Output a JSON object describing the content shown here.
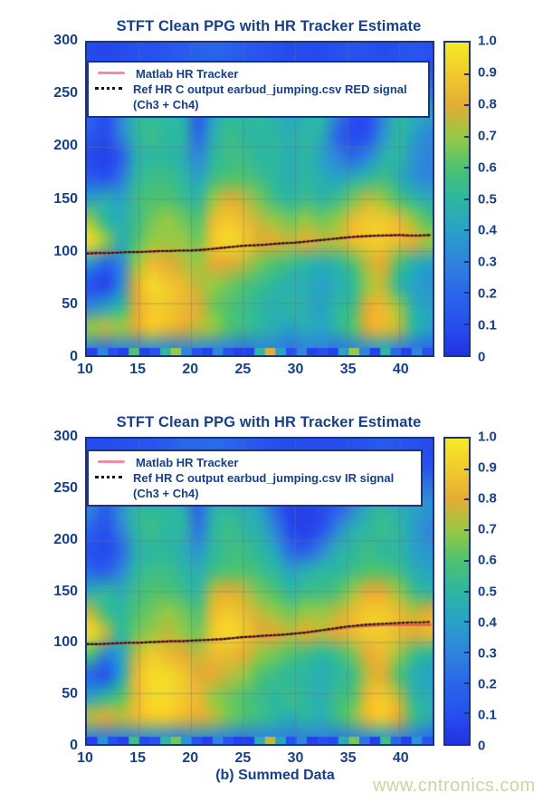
{
  "page": {
    "caption": "(b) Summed Data",
    "watermark": "www.cntronics.com"
  },
  "colors": {
    "axis_text": "#15408f",
    "border": "#1a3480",
    "legend_pink": "#f28ca4",
    "tracker_pink": "#e05a50",
    "tracker_ref": "#1c1410",
    "grid": "rgba(105,118,135,0.45)",
    "watermark": "#c9d69e",
    "page_bg": "#ffffff"
  },
  "colormap": {
    "stops": [
      {
        "t": 0.0,
        "c": "#2331e4"
      },
      {
        "t": 0.1,
        "c": "#2750ee"
      },
      {
        "t": 0.2,
        "c": "#2a66ea"
      },
      {
        "t": 0.3,
        "c": "#2f84dc"
      },
      {
        "t": 0.4,
        "c": "#28a2c6"
      },
      {
        "t": 0.5,
        "c": "#2db7a0"
      },
      {
        "t": 0.6,
        "c": "#4ec26f"
      },
      {
        "t": 0.7,
        "c": "#97c943"
      },
      {
        "t": 0.8,
        "c": "#e3ac34"
      },
      {
        "t": 0.9,
        "c": "#f1ca2d"
      },
      {
        "t": 1.0,
        "c": "#f5ea27"
      }
    ]
  },
  "chart_data": [
    {
      "type": "heatmap",
      "title": "STFT Clean PPG with HR Tracker Estimate",
      "legend": [
        {
          "swatch": "pink-line",
          "label": "Matlab HR Tracker"
        },
        {
          "swatch": "dotted-line",
          "label": "Ref HR C output earbud_jumping.csv RED signal (Ch3 + Ch4)"
        }
      ],
      "xlim": [
        10,
        43.2
      ],
      "ylim": [
        0,
        300
      ],
      "x_ticks": [
        10,
        15,
        20,
        25,
        30,
        35,
        40
      ],
      "y_ticks": [
        0,
        50,
        100,
        150,
        200,
        250,
        300
      ],
      "grid_x": [
        15,
        20,
        25,
        30,
        35,
        40
      ],
      "grid_y": [
        50,
        100,
        150,
        200,
        250
      ],
      "colorbar_ticks": [
        "1.0",
        "0.9",
        "0.8",
        "0.7",
        "0.6",
        "0.5",
        "0.4",
        "0.3",
        "0.2",
        "0.1",
        "0"
      ],
      "heatmap": {
        "row_y_top": 300,
        "row_y_bottom": 0,
        "values": [
          [
            0.08,
            0.06,
            0.08,
            0.1,
            0.1,
            0.12,
            0.15,
            0.18,
            0.2,
            0.18,
            0.15,
            0.12,
            0.1,
            0.08,
            0.08,
            0.08,
            0.1,
            0.12,
            0.1,
            0.08,
            0.1,
            0.12,
            0.1
          ],
          [
            0.1,
            0.1,
            0.12,
            0.12,
            0.12,
            0.15,
            0.15,
            0.15,
            0.15,
            0.15,
            0.12,
            0.12,
            0.12,
            0.1,
            0.1,
            0.1,
            0.1,
            0.1,
            0.12,
            0.12,
            0.12,
            0.15,
            0.12
          ],
          [
            0.15,
            0.18,
            0.2,
            0.2,
            0.22,
            0.25,
            0.25,
            0.25,
            0.22,
            0.22,
            0.2,
            0.2,
            0.18,
            0.18,
            0.18,
            0.18,
            0.2,
            0.2,
            0.22,
            0.25,
            0.3,
            0.3,
            0.25
          ],
          [
            0.2,
            0.1,
            0.3,
            0.5,
            0.5,
            0.5,
            0.45,
            0.15,
            0.4,
            0.5,
            0.5,
            0.5,
            0.45,
            0.4,
            0.45,
            0.5,
            0.3,
            0.1,
            0.1,
            0.3,
            0.5,
            0.45,
            0.4
          ],
          [
            0.15,
            0.08,
            0.3,
            0.5,
            0.55,
            0.5,
            0.5,
            0.2,
            0.45,
            0.55,
            0.5,
            0.5,
            0.5,
            0.45,
            0.5,
            0.45,
            0.2,
            0.08,
            0.1,
            0.35,
            0.5,
            0.4,
            0.3
          ],
          [
            0.08,
            0.05,
            0.15,
            0.45,
            0.5,
            0.5,
            0.45,
            0.3,
            0.5,
            0.55,
            0.55,
            0.5,
            0.5,
            0.45,
            0.5,
            0.4,
            0.3,
            0.2,
            0.3,
            0.45,
            0.5,
            0.35,
            0.3
          ],
          [
            0.15,
            0.1,
            0.25,
            0.5,
            0.55,
            0.55,
            0.5,
            0.4,
            0.55,
            0.6,
            0.6,
            0.55,
            0.5,
            0.45,
            0.5,
            0.45,
            0.4,
            0.45,
            0.5,
            0.55,
            0.45,
            0.35,
            0.3
          ],
          [
            0.4,
            0.45,
            0.4,
            0.55,
            0.6,
            0.6,
            0.55,
            0.5,
            0.7,
            0.8,
            0.75,
            0.65,
            0.55,
            0.5,
            0.55,
            0.5,
            0.55,
            0.65,
            0.75,
            0.7,
            0.6,
            0.5,
            0.45
          ],
          [
            0.7,
            0.5,
            0.45,
            0.55,
            0.65,
            0.7,
            0.65,
            0.6,
            0.85,
            0.9,
            0.85,
            0.75,
            0.7,
            0.65,
            0.7,
            0.65,
            0.7,
            0.85,
            0.9,
            0.9,
            0.85,
            0.7,
            0.6
          ],
          [
            0.95,
            0.7,
            0.45,
            0.6,
            0.7,
            0.7,
            0.7,
            0.65,
            0.9,
            0.95,
            0.9,
            0.8,
            0.8,
            0.75,
            0.8,
            0.75,
            0.75,
            0.85,
            0.9,
            0.9,
            0.85,
            0.8,
            0.7
          ],
          [
            0.35,
            0.2,
            0.3,
            0.7,
            0.85,
            0.8,
            0.75,
            0.7,
            0.8,
            0.8,
            0.75,
            0.65,
            0.6,
            0.55,
            0.5,
            0.45,
            0.5,
            0.6,
            0.75,
            0.8,
            0.6,
            0.45,
            0.4
          ],
          [
            0.1,
            0.05,
            0.3,
            0.8,
            0.95,
            0.9,
            0.85,
            0.75,
            0.7,
            0.65,
            0.6,
            0.55,
            0.5,
            0.45,
            0.45,
            0.4,
            0.45,
            0.5,
            0.7,
            0.75,
            0.5,
            0.4,
            0.35
          ],
          [
            0.3,
            0.4,
            0.5,
            0.8,
            0.9,
            0.9,
            0.85,
            0.8,
            0.65,
            0.6,
            0.55,
            0.5,
            0.45,
            0.5,
            0.45,
            0.4,
            0.5,
            0.55,
            0.8,
            0.85,
            0.7,
            0.45,
            0.4
          ],
          [
            0.7,
            0.75,
            0.7,
            0.8,
            0.9,
            0.85,
            0.8,
            0.75,
            0.7,
            0.6,
            0.55,
            0.5,
            0.45,
            0.4,
            0.45,
            0.4,
            0.5,
            0.6,
            0.8,
            0.85,
            0.75,
            0.5,
            0.4
          ],
          [
            0.3,
            0.25,
            0.3,
            0.3,
            0.35,
            0.3,
            0.3,
            0.35,
            0.3,
            0.3,
            0.25,
            0.3,
            0.3,
            0.25,
            0.3,
            0.3,
            0.25,
            0.3,
            0.35,
            0.4,
            0.3,
            0.25,
            0.2
          ]
        ]
      },
      "bottom_speckles": [
        0.05,
        0.3,
        0.1,
        0.05,
        0.6,
        0.05,
        0.1,
        0.5,
        0.7,
        0.3,
        0.1,
        0.05,
        0.3,
        0.1,
        0.05,
        0.05,
        0.5,
        0.8,
        0.4,
        0.1,
        0.3,
        0.05,
        0.1,
        0.05,
        0.4,
        0.7,
        0.3,
        0.05,
        0.5,
        0.2,
        0.05,
        0.3,
        0.1
      ],
      "tracker": {
        "x_start": 10,
        "x_step": 1,
        "matlab_hr": [
          98,
          98,
          98.5,
          99,
          99,
          99.5,
          99.5,
          100,
          100,
          100.5,
          101,
          101.5,
          102,
          103,
          104,
          105,
          105.5,
          106,
          106.5,
          107.5,
          108,
          109,
          110,
          111,
          112,
          113,
          113.5,
          114,
          114.5,
          115,
          115,
          114.5,
          114.5,
          115
        ],
        "ref_hr": [
          97.5,
          98,
          98,
          98.5,
          99,
          99,
          99.5,
          100,
          100,
          100.5,
          100.5,
          101,
          102,
          103,
          104,
          105,
          105.5,
          106,
          107,
          107.5,
          108,
          109,
          110,
          111,
          112,
          113,
          114,
          114.5,
          115,
          115,
          115.5,
          115,
          115,
          115.5
        ]
      }
    },
    {
      "type": "heatmap",
      "title": "STFT Clean PPG with HR Tracker Estimate",
      "legend": [
        {
          "swatch": "pink-line",
          "label": "Matlab HR Tracker"
        },
        {
          "swatch": "dotted-line",
          "label": "Ref HR C output earbud_jumping.csv IR signal (Ch3 + Ch4)"
        }
      ],
      "xlim": [
        10,
        43.2
      ],
      "ylim": [
        0,
        300
      ],
      "x_ticks": [
        10,
        15,
        20,
        25,
        30,
        35,
        40
      ],
      "y_ticks": [
        0,
        50,
        100,
        150,
        200,
        250,
        300
      ],
      "grid_x": [
        15,
        20,
        25,
        30,
        35,
        40
      ],
      "grid_y": [
        50,
        100,
        150,
        200,
        250
      ],
      "colorbar_ticks": [
        "1.0",
        "0.9",
        "0.8",
        "0.7",
        "0.6",
        "0.5",
        "0.4",
        "0.3",
        "0.2",
        "0.1",
        "0"
      ],
      "heatmap": {
        "row_y_top": 300,
        "row_y_bottom": 0,
        "values": [
          [
            0.08,
            0.08,
            0.1,
            0.1,
            0.12,
            0.15,
            0.2,
            0.2,
            0.22,
            0.2,
            0.15,
            0.12,
            0.1,
            0.08,
            0.08,
            0.08,
            0.08,
            0.1,
            0.12,
            0.15,
            0.12,
            0.1,
            0.08
          ],
          [
            0.1,
            0.1,
            0.12,
            0.12,
            0.15,
            0.15,
            0.18,
            0.18,
            0.18,
            0.15,
            0.15,
            0.12,
            0.1,
            0.1,
            0.08,
            0.08,
            0.08,
            0.1,
            0.12,
            0.15,
            0.15,
            0.12,
            0.1
          ],
          [
            0.2,
            0.25,
            0.25,
            0.25,
            0.3,
            0.3,
            0.3,
            0.28,
            0.25,
            0.25,
            0.22,
            0.2,
            0.15,
            0.1,
            0.08,
            0.08,
            0.1,
            0.2,
            0.3,
            0.35,
            0.35,
            0.3,
            0.25
          ],
          [
            0.3,
            0.15,
            0.35,
            0.5,
            0.5,
            0.5,
            0.45,
            0.2,
            0.45,
            0.5,
            0.45,
            0.4,
            0.2,
            0.05,
            0.05,
            0.08,
            0.15,
            0.3,
            0.45,
            0.5,
            0.45,
            0.4,
            0.35
          ],
          [
            0.2,
            0.1,
            0.3,
            0.5,
            0.55,
            0.5,
            0.5,
            0.25,
            0.5,
            0.55,
            0.5,
            0.45,
            0.3,
            0.08,
            0.05,
            0.1,
            0.3,
            0.45,
            0.5,
            0.55,
            0.5,
            0.4,
            0.3
          ],
          [
            0.1,
            0.08,
            0.2,
            0.45,
            0.5,
            0.5,
            0.45,
            0.35,
            0.5,
            0.55,
            0.55,
            0.5,
            0.4,
            0.2,
            0.15,
            0.3,
            0.45,
            0.5,
            0.55,
            0.5,
            0.5,
            0.4,
            0.35
          ],
          [
            0.2,
            0.15,
            0.3,
            0.5,
            0.55,
            0.55,
            0.5,
            0.45,
            0.55,
            0.6,
            0.6,
            0.55,
            0.5,
            0.4,
            0.45,
            0.5,
            0.5,
            0.55,
            0.6,
            0.6,
            0.55,
            0.45,
            0.4
          ],
          [
            0.45,
            0.5,
            0.45,
            0.55,
            0.6,
            0.6,
            0.55,
            0.5,
            0.75,
            0.8,
            0.75,
            0.65,
            0.6,
            0.5,
            0.55,
            0.55,
            0.6,
            0.7,
            0.8,
            0.8,
            0.7,
            0.55,
            0.5
          ],
          [
            0.75,
            0.55,
            0.5,
            0.6,
            0.65,
            0.7,
            0.65,
            0.6,
            0.85,
            0.9,
            0.85,
            0.75,
            0.7,
            0.65,
            0.7,
            0.7,
            0.75,
            0.85,
            0.9,
            0.9,
            0.85,
            0.75,
            0.8
          ],
          [
            0.95,
            0.75,
            0.5,
            0.65,
            0.7,
            0.75,
            0.7,
            0.65,
            0.9,
            0.95,
            0.9,
            0.8,
            0.8,
            0.75,
            0.8,
            0.75,
            0.8,
            0.85,
            0.9,
            0.9,
            0.85,
            0.8,
            0.85
          ],
          [
            0.6,
            0.3,
            0.4,
            0.75,
            0.9,
            0.85,
            0.8,
            0.75,
            0.85,
            0.85,
            0.8,
            0.7,
            0.65,
            0.6,
            0.55,
            0.5,
            0.55,
            0.65,
            0.8,
            0.85,
            0.7,
            0.55,
            0.5
          ],
          [
            0.2,
            0.1,
            0.4,
            0.85,
            0.95,
            0.95,
            0.9,
            0.8,
            0.8,
            0.75,
            0.7,
            0.6,
            0.55,
            0.5,
            0.5,
            0.45,
            0.5,
            0.55,
            0.75,
            0.8,
            0.6,
            0.45,
            0.4
          ],
          [
            0.4,
            0.5,
            0.6,
            0.85,
            0.95,
            0.95,
            0.9,
            0.85,
            0.7,
            0.65,
            0.6,
            0.55,
            0.5,
            0.55,
            0.5,
            0.45,
            0.55,
            0.6,
            0.85,
            0.9,
            0.75,
            0.5,
            0.45
          ],
          [
            0.75,
            0.8,
            0.75,
            0.85,
            0.9,
            0.9,
            0.85,
            0.8,
            0.75,
            0.65,
            0.6,
            0.55,
            0.5,
            0.45,
            0.5,
            0.45,
            0.55,
            0.65,
            0.85,
            0.9,
            0.8,
            0.55,
            0.45
          ],
          [
            0.3,
            0.28,
            0.3,
            0.32,
            0.35,
            0.32,
            0.3,
            0.35,
            0.32,
            0.3,
            0.28,
            0.3,
            0.3,
            0.28,
            0.3,
            0.3,
            0.28,
            0.3,
            0.35,
            0.4,
            0.32,
            0.28,
            0.22
          ]
        ]
      },
      "bottom_speckles": [
        0.05,
        0.35,
        0.1,
        0.05,
        0.55,
        0.08,
        0.12,
        0.5,
        0.65,
        0.35,
        0.12,
        0.05,
        0.3,
        0.12,
        0.05,
        0.05,
        0.45,
        0.75,
        0.4,
        0.1,
        0.3,
        0.05,
        0.1,
        0.08,
        0.45,
        0.65,
        0.25,
        0.05,
        0.55,
        0.2,
        0.05,
        0.35,
        0.12
      ],
      "tracker": {
        "x_start": 10,
        "x_step": 1,
        "matlab_hr": [
          98,
          98,
          98.5,
          99,
          99.5,
          99.5,
          100,
          100.5,
          101,
          101,
          101.5,
          102,
          102.5,
          103,
          104,
          105,
          105.5,
          106,
          106.5,
          107.5,
          108.5,
          109.5,
          110.5,
          112,
          113,
          114.5,
          115.5,
          116,
          116.5,
          117,
          117,
          117,
          117,
          117
        ],
        "ref_hr": [
          98,
          98,
          98.5,
          99,
          99.5,
          99.5,
          100,
          100.5,
          101,
          101,
          101.5,
          102,
          102.5,
          103,
          104,
          105,
          105.5,
          106.5,
          107,
          107.5,
          108.5,
          109.5,
          111,
          112.5,
          114,
          115.5,
          116.5,
          117.5,
          118,
          118.5,
          119,
          119.5,
          119.5,
          120
        ]
      }
    }
  ]
}
